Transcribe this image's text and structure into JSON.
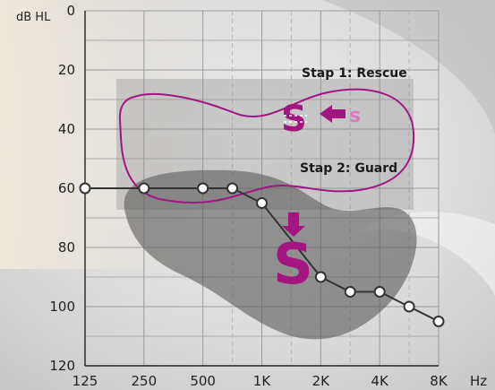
{
  "chart_data": {
    "type": "line",
    "title": "",
    "ylabel": "dB HL",
    "xlabel": "Hz",
    "x_categories": [
      "125",
      "250",
      "500",
      "1K",
      "2K",
      "4K",
      "8K"
    ],
    "x_intermediate_gridlines": [
      "750",
      "1.5K",
      "3K",
      "6K"
    ],
    "y_ticks": [
      0,
      20,
      40,
      60,
      80,
      100,
      120
    ],
    "ylim": [
      0,
      120
    ],
    "y_inverted": true,
    "grid": true,
    "series": [
      {
        "x": [
          "125",
          "250",
          "500",
          "750",
          "1K",
          "2K",
          "3K",
          "4K",
          "6K",
          "8K"
        ],
        "values": [
          60,
          60,
          60,
          60,
          65,
          90,
          95,
          95,
          100,
          105
        ]
      }
    ],
    "annotations": {
      "stage1_label": "Stap 1: Rescue",
      "stage2_label": "Stap 2: Guard",
      "big_s": "S",
      "small_s": "s"
    },
    "colors": {
      "accent": "#a3157f",
      "accent_light": "#d77bbd",
      "line": "#333333",
      "region": "#6e6e6e",
      "grid": "#9a9a9a",
      "dashed_grid": "#b5b5b5"
    }
  }
}
